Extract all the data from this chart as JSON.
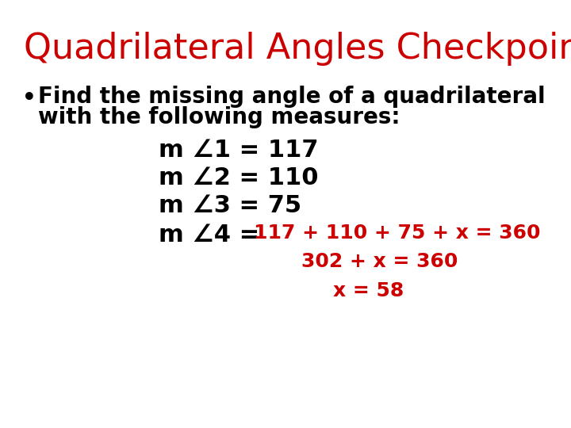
{
  "title": "Quadrilateral Angles Checkpoint",
  "title_color": "#cc0000",
  "title_fontsize": 32,
  "bg_color": "#ffffff",
  "bullet_line1": "Find the missing angle of a quadrilateral",
  "bullet_line2": "with the following measures:",
  "bullet_fontsize": 20,
  "bullet_color": "#000000",
  "lines_black": [
    {
      "text": "m ∠1 = 117"
    },
    {
      "text": "m ∠2 = 110"
    },
    {
      "text": "m ∠3 = 75"
    },
    {
      "text": "m ∠4 = "
    }
  ],
  "lines_red": [
    {
      "text": "117 + 110 + 75 + x = 360"
    },
    {
      "text": "302 + x = 360"
    },
    {
      "text": "x = 58"
    }
  ],
  "line_fontsize": 22,
  "line_color_black": "#000000",
  "line_color_red": "#cc0000"
}
